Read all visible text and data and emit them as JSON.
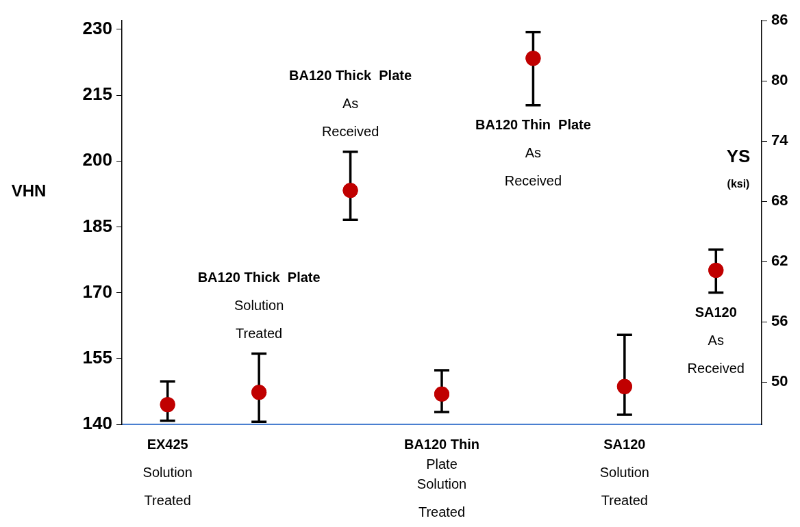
{
  "chart_data": {
    "type": "scatter",
    "ylabel": "VHN",
    "y2label": "YS\n(ksi)",
    "categories": [
      "EX425\nSolution\nTreated",
      "BA120 Thick  Plate\nSolution\nTreated",
      "BA120 Thick  Plate\nAs\nReceived",
      "BA120 Thin\nPlate\nSolution\nTreated",
      "BA120 Thin  Plate\nAs\nReceived",
      "SA120\nSolution\nTreated",
      "SA120\nAs\nReceived"
    ],
    "series": [
      {
        "color": "#c00000",
        "values": [
          144.5,
          147.3,
          193.3,
          146.9,
          223.4,
          148.6,
          175.1
        ],
        "errors": [
          [
            140.8,
            149.8
          ],
          [
            140.6,
            156.1
          ],
          [
            186.6,
            202.1
          ],
          [
            142.8,
            152.3
          ],
          [
            212.7,
            229.4
          ],
          [
            142.2,
            160.4
          ],
          [
            170.0,
            179.8
          ]
        ]
      }
    ],
    "ylim": [
      140,
      232
    ],
    "yticks": [
      140,
      155,
      170,
      185,
      200,
      215,
      230
    ],
    "y2lim": [
      45.8,
      86
    ],
    "y2ticks": [
      50,
      56,
      62,
      68,
      74,
      80,
      86
    ],
    "marker": "circle",
    "grid": false,
    "legend": false
  }
}
